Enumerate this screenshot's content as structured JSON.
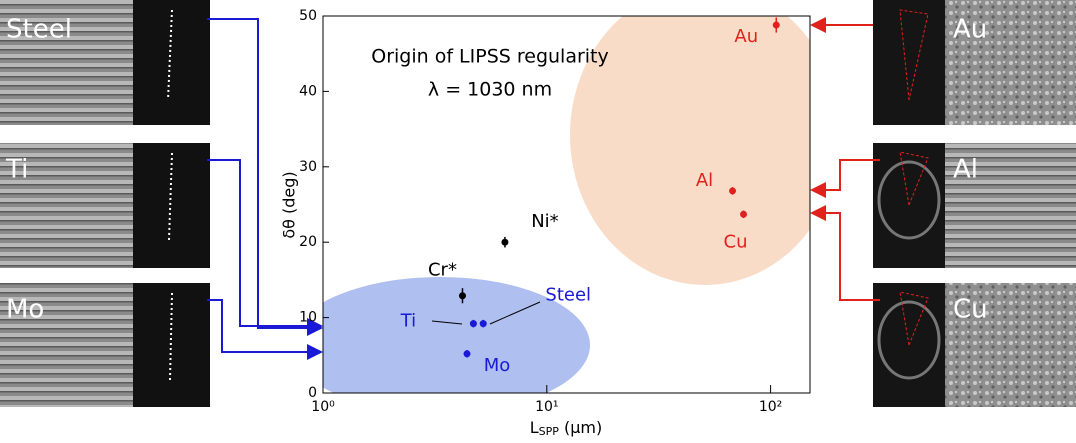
{
  "chart_data": {
    "type": "scatter",
    "annotations": [
      "Origin of LIPSS regularity",
      "λ = 1030 nm"
    ],
    "y_label": "δθ (deg)",
    "x_label": {
      "main": "L",
      "sub": "SPP",
      "unit": " (μm)"
    },
    "x_log": true,
    "xlim": [
      1,
      150
    ],
    "ylim": [
      0,
      50
    ],
    "xticks": [
      {
        "value": 1,
        "label": "10⁰"
      },
      {
        "value": 10,
        "label": "10¹"
      },
      {
        "value": 100,
        "label": "10²"
      }
    ],
    "yticks": [
      0,
      10,
      20,
      30,
      40,
      50
    ],
    "series": [
      {
        "name": "Au",
        "color": "#e0211c",
        "x": [
          106
        ],
        "values": [
          48.8
        ],
        "errors": [
          1.0
        ]
      },
      {
        "name": "Al",
        "color": "#e0211c",
        "x": [
          67.6
        ],
        "values": [
          26.8
        ],
        "errors": [
          0.5
        ]
      },
      {
        "name": "Cu",
        "color": "#e0211c",
        "x": [
          75.7
        ],
        "values": [
          23.7
        ],
        "errors": [
          0.5
        ]
      },
      {
        "name": "Ni*",
        "color": "#000000",
        "x": [
          6.5
        ],
        "values": [
          20.0
        ],
        "errors": [
          0.7
        ]
      },
      {
        "name": "Cr*",
        "color": "#000000",
        "x": [
          4.2
        ],
        "values": [
          12.9
        ],
        "errors": [
          1.0
        ]
      },
      {
        "name": "Ti",
        "color": "#1a1ad6",
        "x": [
          4.7
        ],
        "values": [
          9.2
        ],
        "errors": [
          0.5
        ]
      },
      {
        "name": "Steel",
        "color": "#1a1ad6",
        "x": [
          5.2
        ],
        "values": [
          9.2
        ],
        "errors": [
          0.5
        ]
      },
      {
        "name": "Mo",
        "color": "#1a1ad6",
        "x": [
          4.4
        ],
        "values": [
          5.2
        ],
        "errors": [
          0.5
        ]
      }
    ],
    "panel_labels": [
      "Steel",
      "Ti",
      "Mo",
      "Au",
      "Al",
      "Cu"
    ]
  }
}
